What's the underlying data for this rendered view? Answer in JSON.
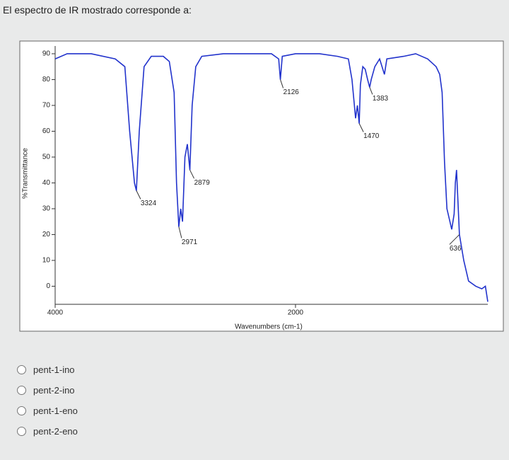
{
  "question": "El espectro de IR mostrado corresponde a:",
  "chart_data": {
    "type": "line",
    "xlabel": "Wavenumbers (cm-1)",
    "ylabel": "%Transmittance",
    "xlim": [
      4000,
      400
    ],
    "ylim": [
      -7,
      93
    ],
    "xticks": [
      4000,
      2000
    ],
    "yticks": [
      0,
      10,
      20,
      30,
      40,
      50,
      60,
      70,
      80,
      90
    ],
    "series": [
      {
        "color": "#2233cc",
        "x": [
          4000,
          3900,
          3700,
          3500,
          3420,
          3380,
          3340,
          3324,
          3300,
          3260,
          3200,
          3100,
          3050,
          3010,
          2990,
          2971,
          2955,
          2940,
          2920,
          2900,
          2879,
          2860,
          2830,
          2780,
          2600,
          2400,
          2200,
          2140,
          2126,
          2110,
          2000,
          1800,
          1650,
          1560,
          1530,
          1500,
          1485,
          1470,
          1460,
          1440,
          1420,
          1400,
          1383,
          1370,
          1340,
          1300,
          1260,
          1240,
          1100,
          1000,
          900,
          830,
          800,
          780,
          760,
          740,
          700,
          680,
          670,
          660,
          636,
          600,
          560,
          500,
          450,
          420,
          400
        ],
        "values": [
          88,
          90,
          90,
          88,
          85,
          60,
          40,
          37,
          60,
          85,
          89,
          89,
          87,
          75,
          40,
          23,
          30,
          25,
          50,
          55,
          45,
          70,
          85,
          89,
          90,
          90,
          90,
          88,
          80,
          89,
          90,
          90,
          89,
          88,
          80,
          65,
          70,
          63,
          78,
          85,
          84,
          80,
          77,
          80,
          85,
          88,
          82,
          88,
          89,
          90,
          88,
          85,
          82,
          75,
          48,
          30,
          22,
          28,
          40,
          45,
          20,
          10,
          2,
          0,
          -1,
          0,
          -6
        ]
      }
    ],
    "annotations": [
      {
        "x": 3324,
        "y": 37,
        "text": "3324"
      },
      {
        "x": 2971,
        "y": 23,
        "text": "2971"
      },
      {
        "x": 2879,
        "y": 45,
        "text": "2879"
      },
      {
        "x": 2126,
        "y": 80,
        "text": "2126"
      },
      {
        "x": 1470,
        "y": 63,
        "text": "1470"
      },
      {
        "x": 1383,
        "y": 77,
        "text": "1383"
      },
      {
        "x": 636,
        "y": 20,
        "text": "636"
      }
    ]
  },
  "options": [
    "pent-1-ino",
    "pent-2-ino",
    "pent-1-eno",
    "pent-2-eno"
  ]
}
